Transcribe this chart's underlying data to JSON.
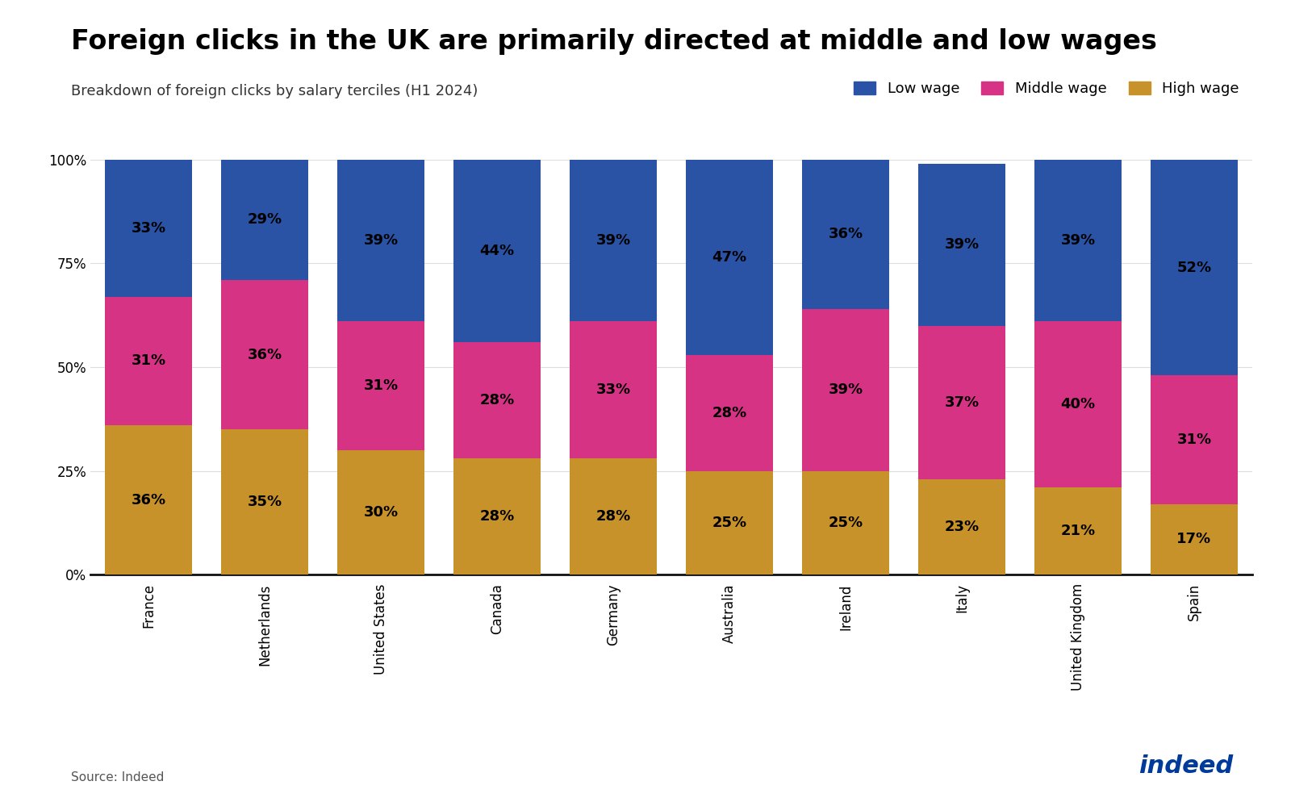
{
  "title": "Foreign clicks in the UK are primarily directed at middle and low wages",
  "subtitle": "Breakdown of foreign clicks by salary terciles (H1 2024)",
  "source": "Source: Indeed",
  "categories": [
    "France",
    "Netherlands",
    "United States",
    "Canada",
    "Germany",
    "Australia",
    "Ireland",
    "Italy",
    "United Kingdom",
    "Spain"
  ],
  "high_wage": [
    36,
    35,
    30,
    28,
    28,
    25,
    25,
    23,
    21,
    17
  ],
  "middle_wage": [
    31,
    36,
    31,
    28,
    33,
    28,
    39,
    37,
    40,
    31
  ],
  "low_wage": [
    33,
    29,
    39,
    44,
    39,
    47,
    36,
    39,
    39,
    52
  ],
  "color_high": "#C8922A",
  "color_middle": "#D63384",
  "color_low": "#2A52A5",
  "color_bg": "#FFFFFF",
  "title_fontsize": 24,
  "subtitle_fontsize": 13,
  "legend_fontsize": 13,
  "bar_label_fontsize": 13,
  "tick_fontsize": 12,
  "source_fontsize": 11,
  "indeed_color": "#003A9B",
  "bottom_spine_color": "#111111",
  "grid_color": "#DDDDDD"
}
